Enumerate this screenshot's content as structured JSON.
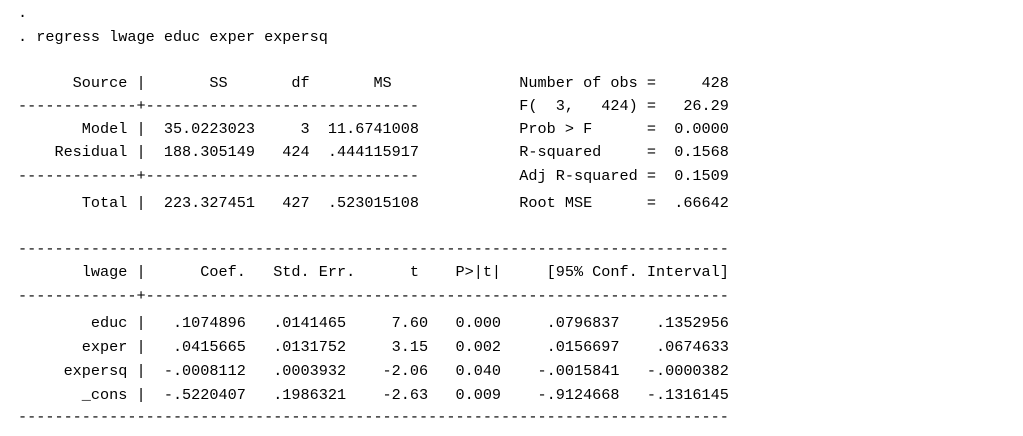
{
  "output": {
    "lines": [
      ".",
      ". regress lwage educ exper expersq",
      "",
      "      Source |       SS       df       MS              Number of obs =     428",
      "-------------+------------------------------           F(  3,   424) =   26.29",
      "       Model |  35.0223023     3  11.6741008           Prob > F      =  0.0000",
      "    Residual |  188.305149   424  .444115917           R-squared     =  0.1568",
      "-------------+------------------------------           Adj R-squared =  0.1509",
      "       Total |  223.327451   427  .523015108           Root MSE      =  .66642",
      "",
      "------------------------------------------------------------------------------",
      "       lwage |      Coef.   Std. Err.      t    P>|t|     [95% Conf. Interval]",
      "-------------+----------------------------------------------------------------",
      "        educ |   .1074896   .0141465     7.60   0.000     .0796837    .1352956",
      "       exper |   .0415665   .0131752     3.15   0.002     .0156697    .0674633",
      "     expersq |  -.0008112   .0003932    -2.06   0.040    -.0015841   -.0000382",
      "       _cons |  -.5220407   .1986321    -2.63   0.009    -.9124668   -.1316145",
      "------------------------------------------------------------------------------"
    ]
  }
}
